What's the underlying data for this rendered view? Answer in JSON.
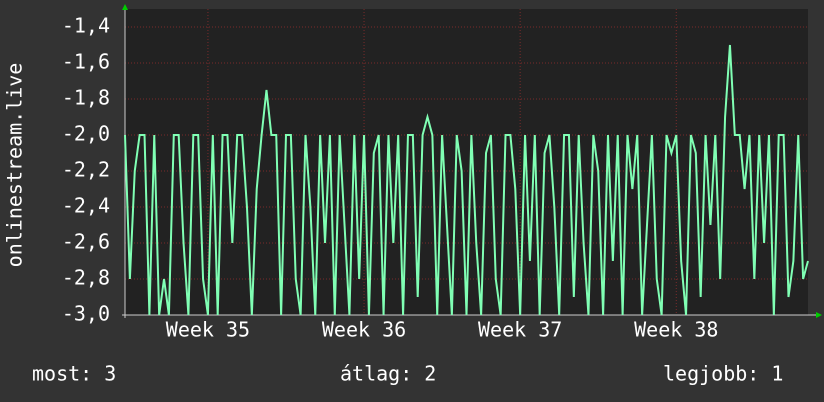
{
  "chart_data": {
    "type": "line",
    "y_label": "onlinestream.live",
    "series": [
      {
        "name": "onlinestream.live",
        "color": "#80ffb4",
        "values": [
          -2.0,
          -2.8,
          -2.2,
          -2.0,
          -2.0,
          -3.0,
          -2.0,
          -3.0,
          -2.8,
          -3.0,
          -2.0,
          -2.0,
          -2.6,
          -3.0,
          -2.0,
          -2.0,
          -2.8,
          -3.0,
          -2.0,
          -3.0,
          -2.0,
          -2.0,
          -2.6,
          -2.0,
          -2.0,
          -2.4,
          -3.0,
          -2.3,
          -2.0,
          -1.75,
          -2.0,
          -2.0,
          -3.0,
          -2.0,
          -2.0,
          -2.8,
          -3.0,
          -2.0,
          -2.4,
          -3.0,
          -2.0,
          -2.6,
          -2.0,
          -3.0,
          -2.0,
          -2.5,
          -3.0,
          -2.0,
          -2.8,
          -2.0,
          -3.0,
          -2.1,
          -2.0,
          -3.0,
          -2.0,
          -2.6,
          -2.0,
          -3.0,
          -2.0,
          -2.0,
          -2.9,
          -2.0,
          -1.9,
          -2.0,
          -3.0,
          -2.0,
          -2.5,
          -3.0,
          -2.0,
          -2.2,
          -3.0,
          -2.0,
          -2.6,
          -3.0,
          -2.1,
          -2.0,
          -2.8,
          -3.0,
          -2.0,
          -2.0,
          -2.3,
          -3.0,
          -2.0,
          -2.7,
          -2.0,
          -3.0,
          -2.1,
          -2.0,
          -2.4,
          -3.0,
          -2.0,
          -2.0,
          -2.9,
          -2.0,
          -2.6,
          -3.0,
          -2.0,
          -2.2,
          -3.0,
          -2.0,
          -2.7,
          -2.0,
          -3.0,
          -2.0,
          -2.3,
          -2.0,
          -3.0,
          -2.5,
          -2.0,
          -2.8,
          -3.0,
          -2.0,
          -2.1,
          -2.0,
          -2.7,
          -3.0,
          -2.0,
          -2.1,
          -2.9,
          -2.0,
          -2.5,
          -2.0,
          -2.8,
          -1.9,
          -1.5,
          -2.0,
          -2.0,
          -2.3,
          -2.0,
          -2.8,
          -2.0,
          -2.6,
          -2.0,
          -3.0,
          -2.0,
          -2.0,
          -2.9,
          -2.7,
          -2.0,
          -2.8,
          -2.7
        ]
      }
    ],
    "xlim": [
      0,
      140
    ],
    "xticks": [
      {
        "value": 17,
        "label": "Week 35"
      },
      {
        "value": 49,
        "label": "Week 36"
      },
      {
        "value": 81,
        "label": "Week 37"
      },
      {
        "value": 113,
        "label": "Week 38"
      }
    ],
    "ylim": [
      -3.0,
      -1.3
    ],
    "yticks": [
      {
        "value": -3.0,
        "label": "-3,0"
      },
      {
        "value": -2.8,
        "label": "-2,8"
      },
      {
        "value": -2.6,
        "label": "-2,6"
      },
      {
        "value": -2.4,
        "label": "-2,4"
      },
      {
        "value": -2.2,
        "label": "-2,2"
      },
      {
        "value": -2.0,
        "label": "-2,0"
      },
      {
        "value": -1.8,
        "label": "-1,8"
      },
      {
        "value": -1.6,
        "label": "-1,6"
      },
      {
        "value": -1.4,
        "label": "-1,4"
      }
    ],
    "grid": true,
    "footer": [
      "most: 3",
      "átlag: 2",
      "legjobb: 1"
    ]
  }
}
